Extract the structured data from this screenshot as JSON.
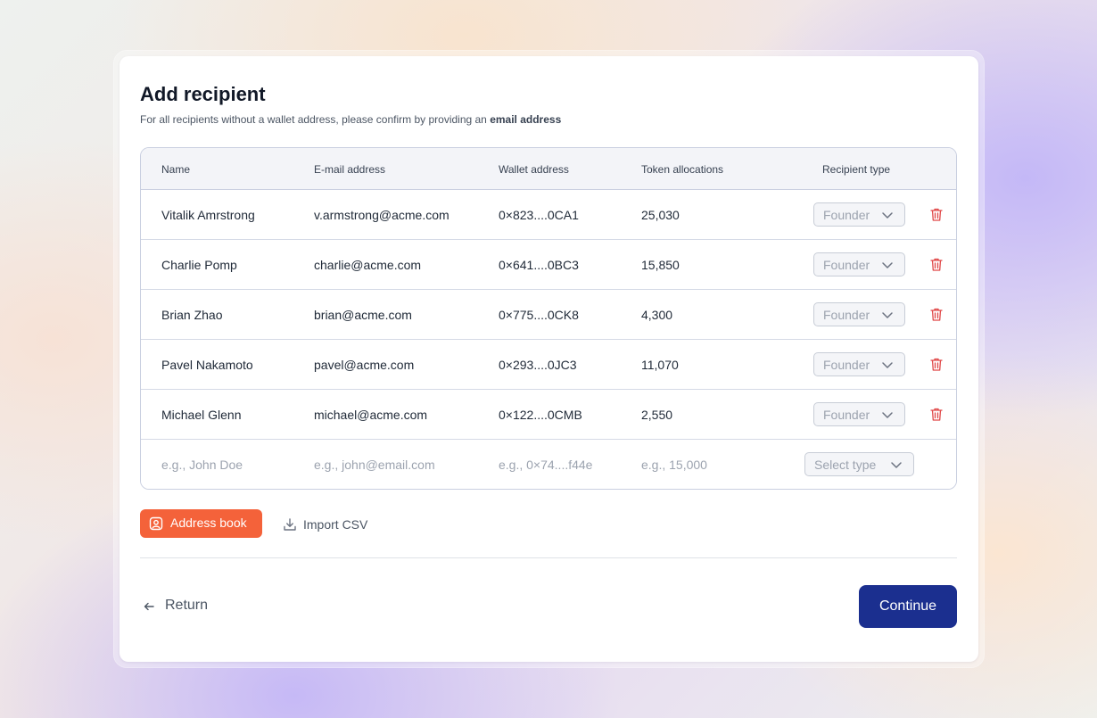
{
  "dialog": {
    "title": "Add recipient",
    "subtitle_prefix": "For all recipients without a wallet address, please confirm by providing an",
    "subtitle_emphasis": "email address"
  },
  "table": {
    "headers": {
      "name": "Name",
      "email": "E-mail address",
      "wallet": "Wallet address",
      "tokens": "Token allocations",
      "type": "Recipient type"
    },
    "rows": [
      {
        "name": "Vitalik Amrstrong",
        "email": "v.armstrong@acme.com",
        "wallet": "0×823....0CA1",
        "tokens": "25,030",
        "type": "Founder"
      },
      {
        "name": "Charlie Pomp",
        "email": "charlie@acme.com",
        "wallet": "0×641....0BC3",
        "tokens": "15,850",
        "type": "Founder"
      },
      {
        "name": "Brian Zhao",
        "email": "brian@acme.com",
        "wallet": "0×775....0CK8",
        "tokens": "4,300",
        "type": "Founder"
      },
      {
        "name": "Pavel Nakamoto",
        "email": "pavel@acme.com",
        "wallet": "0×293....0JC3",
        "tokens": "11,070",
        "type": "Founder"
      },
      {
        "name": "Michael Glenn",
        "email": "michael@acme.com",
        "wallet": "0×122....0CMB",
        "tokens": "2,550",
        "type": "Founder"
      }
    ],
    "new_row": {
      "name_placeholder": "e.g., John Doe",
      "email_placeholder": "e.g., john@email.com",
      "wallet_placeholder": "e.g., 0×74....f44e",
      "tokens_placeholder": "e.g., 15,000",
      "type_placeholder": "Select type"
    }
  },
  "actions": {
    "address_book": "Address book",
    "import_csv": "Import CSV",
    "return": "Return",
    "continue": "Continue"
  },
  "colors": {
    "primary": "#1b2f8f",
    "accent": "#f4623a",
    "danger": "#e04848"
  },
  "icons": {
    "address_book": "contact-book-icon",
    "import": "download-icon",
    "return": "arrow-left-icon",
    "delete": "trash-icon",
    "dropdown": "chevron-down-icon"
  }
}
